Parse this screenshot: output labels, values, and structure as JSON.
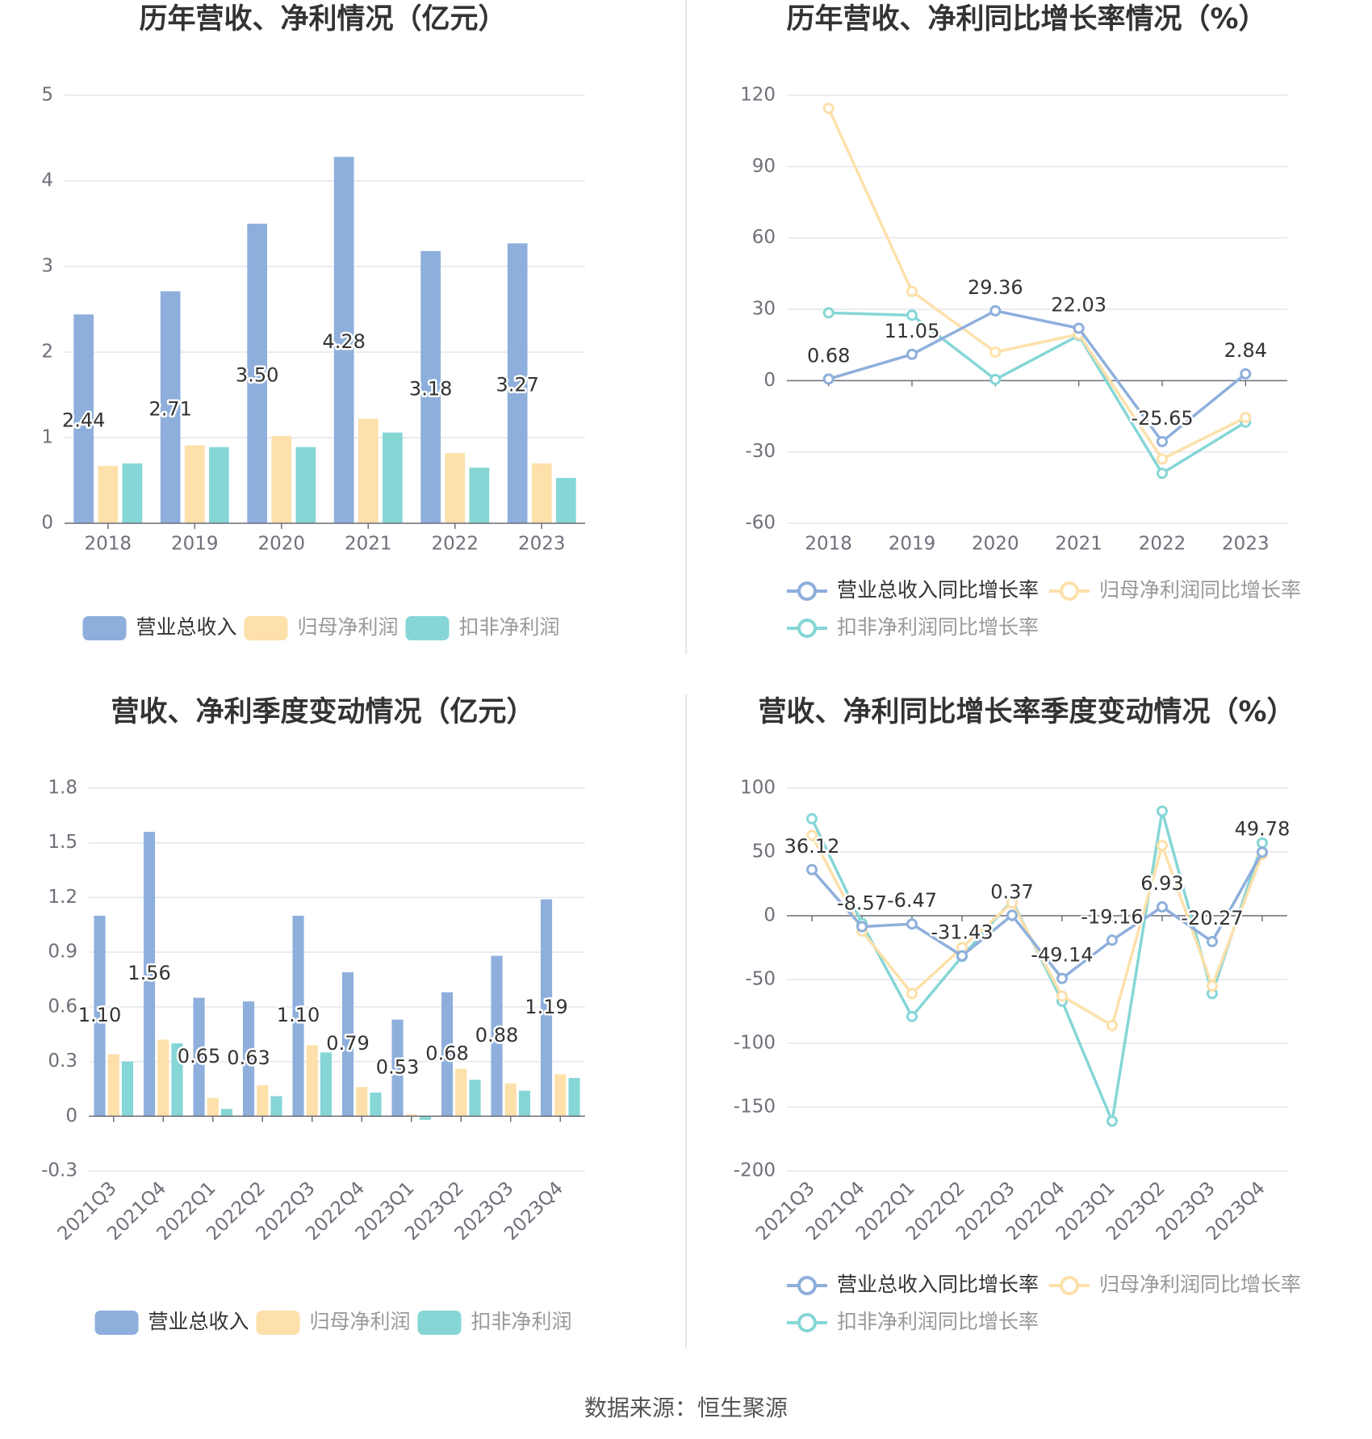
{
  "colors": {
    "revenue": "#8eafdc",
    "netprofit": "#fde0aa",
    "deducted": "#86d6d6",
    "grid": "#e3e6ef",
    "axis": "#6e7079",
    "text": "#333333"
  },
  "legend_bar": [
    "营业总收入",
    "归母净利润",
    "扣非净利润"
  ],
  "legend_line": [
    "营业总收入同比增长率",
    "归母净利润同比增长率",
    "扣非净利润同比增长率"
  ],
  "source": "数据来源：恒生聚源",
  "chart_data": [
    {
      "type": "bar",
      "title": "历年营收、净利情况（亿元）",
      "categories": [
        "2018",
        "2019",
        "2020",
        "2021",
        "2022",
        "2023"
      ],
      "ylim": [
        0,
        5
      ],
      "yticks": [
        "0",
        "1",
        "2",
        "3",
        "4",
        "5"
      ],
      "series": [
        {
          "name": "营业总收入",
          "values": [
            2.44,
            2.71,
            3.5,
            4.28,
            3.18,
            3.27
          ],
          "labels": [
            "2.44",
            "2.71",
            "3.50",
            "4.28",
            "3.18",
            "3.27"
          ]
        },
        {
          "name": "归母净利润",
          "values": [
            0.67,
            0.91,
            1.02,
            1.22,
            0.82,
            0.7
          ]
        },
        {
          "name": "扣非净利润",
          "values": [
            0.7,
            0.89,
            0.89,
            1.06,
            0.65,
            0.53
          ]
        }
      ],
      "legend": "bottom"
    },
    {
      "type": "line",
      "title": "历年营收、净利同比增长率情况（%）",
      "categories": [
        "2018",
        "2019",
        "2020",
        "2021",
        "2022",
        "2023"
      ],
      "ylim": [
        -60,
        120
      ],
      "yticks": [
        "-60",
        "-30",
        "0",
        "30",
        "60",
        "90",
        "120"
      ],
      "series": [
        {
          "name": "营业总收入同比增长率",
          "values": [
            0.68,
            11.05,
            29.36,
            22.03,
            -25.65,
            2.84
          ],
          "labels": [
            "0.68",
            "11.05",
            "29.36",
            "22.03",
            "-25.65",
            "2.84"
          ]
        },
        {
          "name": "归母净利润同比增长率",
          "values": [
            114.5,
            37.5,
            12.0,
            19.5,
            -33.0,
            -15.5
          ]
        },
        {
          "name": "扣非净利润同比增长率",
          "values": [
            28.5,
            27.5,
            0.5,
            19.0,
            -39.0,
            -17.5
          ]
        }
      ],
      "legend": "bottom"
    },
    {
      "type": "bar",
      "title": "营收、净利季度变动情况（亿元）",
      "categories": [
        "2021Q3",
        "2021Q4",
        "2022Q1",
        "2022Q2",
        "2022Q3",
        "2022Q4",
        "2023Q1",
        "2023Q2",
        "2023Q3",
        "2023Q4"
      ],
      "ylim": [
        -0.3,
        1.8
      ],
      "yticks": [
        "-0.3",
        "0",
        "0.3",
        "0.6",
        "0.9",
        "1.2",
        "1.5",
        "1.8"
      ],
      "series": [
        {
          "name": "营业总收入",
          "values": [
            1.1,
            1.56,
            0.65,
            0.63,
            1.1,
            0.79,
            0.53,
            0.68,
            0.88,
            1.19
          ],
          "labels": [
            "1.10",
            "1.56",
            "0.65",
            "0.63",
            "1.10",
            "0.79",
            "0.53",
            "0.68",
            "0.88",
            "1.19"
          ]
        },
        {
          "name": "归母净利润",
          "values": [
            0.34,
            0.42,
            0.1,
            0.17,
            0.39,
            0.16,
            0.01,
            0.26,
            0.18,
            0.23
          ]
        },
        {
          "name": "扣非净利润",
          "values": [
            0.3,
            0.4,
            0.04,
            0.11,
            0.35,
            0.13,
            -0.02,
            0.2,
            0.14,
            0.21
          ]
        }
      ],
      "legend": "bottom"
    },
    {
      "type": "line",
      "title": "营收、净利同比增长率季度变动情况（%）",
      "categories": [
        "2021Q3",
        "2021Q4",
        "2022Q1",
        "2022Q2",
        "2022Q3",
        "2022Q4",
        "2023Q1",
        "2023Q2",
        "2023Q3",
        "2023Q4"
      ],
      "ylim": [
        -200,
        100
      ],
      "yticks": [
        "-200",
        "-150",
        "-100",
        "-50",
        "0",
        "50",
        "100"
      ],
      "series": [
        {
          "name": "营业总收入同比增长率",
          "values": [
            36.12,
            -8.57,
            -6.47,
            -31.43,
            0.37,
            -49.14,
            -19.16,
            6.93,
            -20.27,
            49.78
          ],
          "labels": [
            "36.12",
            "-8.57",
            "-6.47",
            "-31.43",
            "0.37",
            "-49.14",
            "-19.16",
            "6.93",
            "-20.27",
            "49.78"
          ]
        },
        {
          "name": "归母净利润同比增长率",
          "values": [
            63.0,
            -12.0,
            -61.0,
            -25.0,
            10.0,
            -63.0,
            -86.0,
            55.0,
            -55.0,
            48.0
          ]
        },
        {
          "name": "扣非净利润同比增长率",
          "values": [
            76.0,
            -6.0,
            -79.0,
            -32.0,
            12.0,
            -67.0,
            -161.0,
            82.0,
            -61.0,
            57.0
          ]
        }
      ],
      "legend": "bottom"
    }
  ]
}
